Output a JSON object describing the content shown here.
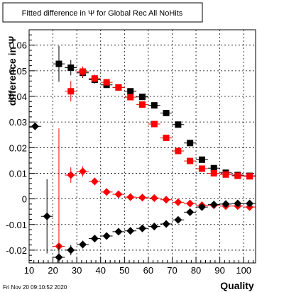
{
  "chart_data": {
    "type": "scatter",
    "title": "Fitted difference in  Ψ  for Global Rec All NoHits",
    "xlabel": "Quality",
    "ylabel": "difference in Ψ",
    "xlim": [
      10,
      105
    ],
    "ylim": [
      -0.025,
      0.066
    ],
    "xticks": [
      10,
      20,
      30,
      40,
      50,
      60,
      70,
      80,
      90,
      100
    ],
    "yticks": [
      -0.02,
      -0.01,
      0,
      0.01,
      0.02,
      0.03,
      0.04,
      0.05,
      0.06
    ],
    "ytick_labels": [
      "-0.02",
      "-0.01",
      "0",
      "0.01",
      "0.02",
      "0.03",
      "0.04",
      "0.05",
      "0.06"
    ],
    "grid": true,
    "timestamp": "Fri Nov 20 09:10:52 2020",
    "series": [
      {
        "color": "#000000",
        "marker": "square",
        "points": [
          {
            "x": 22.5,
            "y": 0.0527,
            "err": 0.007
          },
          {
            "x": 27.5,
            "y": 0.0512,
            "err": 0.003
          },
          {
            "x": 32.5,
            "y": 0.0492,
            "err": 0.002
          },
          {
            "x": 37.5,
            "y": 0.0465,
            "err": 0.0015
          },
          {
            "x": 42.5,
            "y": 0.0445,
            "err": 0.001
          },
          {
            "x": 47.5,
            "y": 0.0435,
            "err": 0.0008
          },
          {
            "x": 52.5,
            "y": 0.042,
            "err": 0.0007
          },
          {
            "x": 57.5,
            "y": 0.0398,
            "err": 0.0006
          },
          {
            "x": 62.5,
            "y": 0.0365,
            "err": 0.0005
          },
          {
            "x": 67.5,
            "y": 0.0335,
            "err": 0.0005
          },
          {
            "x": 72.5,
            "y": 0.029,
            "err": 0.0004
          },
          {
            "x": 77.5,
            "y": 0.0218,
            "err": 0.0004
          },
          {
            "x": 82.5,
            "y": 0.0153,
            "err": 0.0003
          },
          {
            "x": 87.5,
            "y": 0.012,
            "err": 0.0003
          },
          {
            "x": 92.5,
            "y": 0.0102,
            "err": 0.0003
          },
          {
            "x": 97.5,
            "y": 0.0093,
            "err": 0.0003
          },
          {
            "x": 102.5,
            "y": 0.009,
            "err": 0.0003
          }
        ]
      },
      {
        "color": "#ff0000",
        "marker": "square",
        "points": [
          {
            "x": 27.5,
            "y": 0.042,
            "err": 0.004
          },
          {
            "x": 32.5,
            "y": 0.0497,
            "err": 0.002
          },
          {
            "x": 37.5,
            "y": 0.047,
            "err": 0.0015
          },
          {
            "x": 42.5,
            "y": 0.0455,
            "err": 0.001
          },
          {
            "x": 47.5,
            "y": 0.0435,
            "err": 0.0008
          },
          {
            "x": 52.5,
            "y": 0.0397,
            "err": 0.0007
          },
          {
            "x": 57.5,
            "y": 0.0368,
            "err": 0.0006
          },
          {
            "x": 62.5,
            "y": 0.0292,
            "err": 0.0005
          },
          {
            "x": 67.5,
            "y": 0.0238,
            "err": 0.0005
          },
          {
            "x": 72.5,
            "y": 0.0187,
            "err": 0.0004
          },
          {
            "x": 77.5,
            "y": 0.0148,
            "err": 0.0004
          },
          {
            "x": 82.5,
            "y": 0.0118,
            "err": 0.0003
          },
          {
            "x": 87.5,
            "y": 0.01,
            "err": 0.0003
          },
          {
            "x": 92.5,
            "y": 0.0095,
            "err": 0.0003
          },
          {
            "x": 97.5,
            "y": 0.009,
            "err": 0.0003
          },
          {
            "x": 102.5,
            "y": 0.0088,
            "err": 0.0003
          }
        ]
      },
      {
        "color": "#ff0000",
        "marker": "diamond",
        "points": [
          {
            "x": 22.5,
            "y": -0.0185,
            "err": 0.046
          },
          {
            "x": 27.5,
            "y": 0.0093,
            "err": 0.003
          },
          {
            "x": 32.5,
            "y": 0.0107,
            "err": 0.002
          },
          {
            "x": 37.5,
            "y": 0.0068,
            "err": 0.0015
          },
          {
            "x": 42.5,
            "y": 0.0027,
            "err": 0.0008
          },
          {
            "x": 47.5,
            "y": 0.0018,
            "err": 0.0006
          },
          {
            "x": 52.5,
            "y": 0.0007,
            "err": 0.0005
          },
          {
            "x": 57.5,
            "y": 0.0005,
            "err": 0.0004
          },
          {
            "x": 62.5,
            "y": 0.0003,
            "err": 0.0004
          },
          {
            "x": 67.5,
            "y": -0.0003,
            "err": 0.0003
          },
          {
            "x": 72.5,
            "y": -0.0013,
            "err": 0.0003
          },
          {
            "x": 77.5,
            "y": -0.0018,
            "err": 0.0003
          },
          {
            "x": 82.5,
            "y": -0.0025,
            "err": 0.0003
          },
          {
            "x": 87.5,
            "y": -0.0025,
            "err": 0.0003
          },
          {
            "x": 92.5,
            "y": -0.0028,
            "err": 0.0003
          },
          {
            "x": 97.5,
            "y": -0.0028,
            "err": 0.0003
          },
          {
            "x": 102.5,
            "y": -0.0032,
            "err": 0.0003
          }
        ]
      },
      {
        "color": "#000000",
        "marker": "diamond",
        "points": [
          {
            "x": 12.5,
            "y": 0.0283,
            "err": 0.0005
          },
          {
            "x": 17.5,
            "y": -0.0068,
            "err": 0.0145
          },
          {
            "x": 22.5,
            "y": -0.0228,
            "err": 0.005
          },
          {
            "x": 27.5,
            "y": -0.02,
            "err": 0.002
          },
          {
            "x": 32.5,
            "y": -0.0178,
            "err": 0.0015
          },
          {
            "x": 37.5,
            "y": -0.0155,
            "err": 0.001
          },
          {
            "x": 42.5,
            "y": -0.0145,
            "err": 0.0008
          },
          {
            "x": 47.5,
            "y": -0.0128,
            "err": 0.0007
          },
          {
            "x": 52.5,
            "y": -0.0125,
            "err": 0.0006
          },
          {
            "x": 57.5,
            "y": -0.0115,
            "err": 0.0005
          },
          {
            "x": 62.5,
            "y": -0.0108,
            "err": 0.0005
          },
          {
            "x": 67.5,
            "y": -0.0098,
            "err": 0.0004
          },
          {
            "x": 72.5,
            "y": -0.0082,
            "err": 0.0004
          },
          {
            "x": 77.5,
            "y": -0.0052,
            "err": 0.0004
          },
          {
            "x": 82.5,
            "y": -0.0032,
            "err": 0.0003
          },
          {
            "x": 87.5,
            "y": -0.0022,
            "err": 0.0003
          },
          {
            "x": 92.5,
            "y": -0.002,
            "err": 0.0003
          },
          {
            "x": 97.5,
            "y": -0.0018,
            "err": 0.0003
          },
          {
            "x": 102.5,
            "y": -0.0018,
            "err": 0.0003
          }
        ]
      }
    ]
  }
}
